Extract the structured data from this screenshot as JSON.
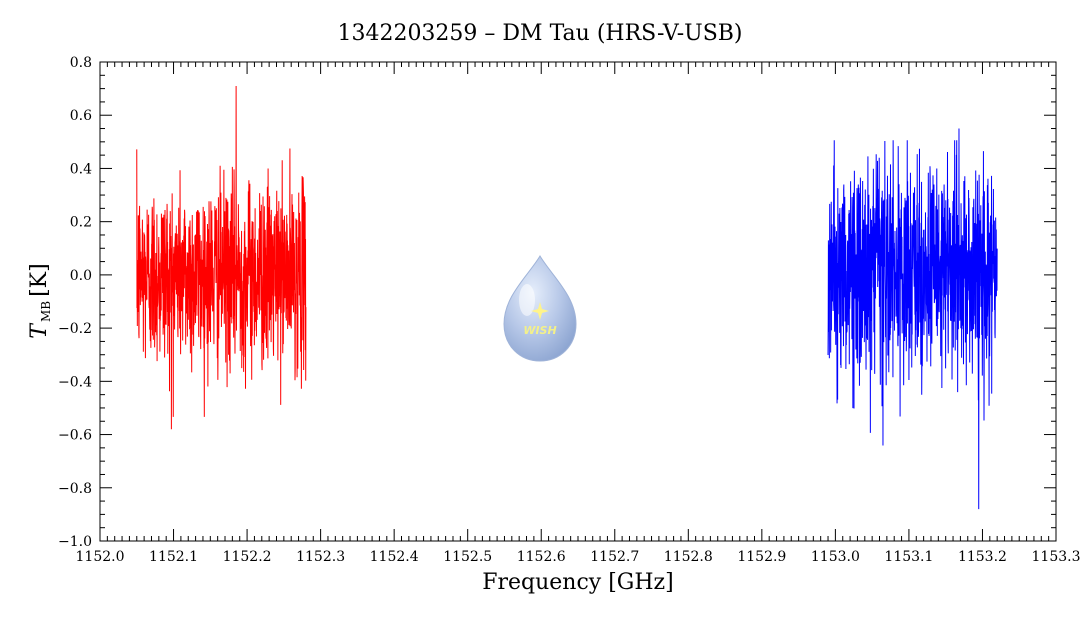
{
  "chart_data": {
    "type": "line",
    "title": "1342203259 – DM Tau (HRS-V-USB)",
    "xlabel": "Frequency [GHz]",
    "ylabel_symbol": "T",
    "ylabel_subscript": "MB",
    "ylabel_unit": "[K]",
    "xlim": [
      1152.0,
      1153.3
    ],
    "ylim": [
      -1.0,
      0.8
    ],
    "x_ticks": [
      "1152.0",
      "1152.1",
      "1152.2",
      "1152.3",
      "1152.4",
      "1152.5",
      "1152.6",
      "1152.7",
      "1152.8",
      "1152.9",
      "1153.0",
      "1153.1",
      "1153.2",
      "1153.3"
    ],
    "x_tick_values": [
      1152.0,
      1152.1,
      1152.2,
      1152.3,
      1152.4,
      1152.5,
      1152.6,
      1152.7,
      1152.8,
      1152.9,
      1153.0,
      1153.1,
      1153.2,
      1153.3
    ],
    "y_ticks": [
      "−1.0",
      "−0.8",
      "−0.6",
      "−0.4",
      "−0.2",
      "0.0",
      "0.2",
      "0.4",
      "0.6",
      "0.8"
    ],
    "y_tick_values": [
      -1.0,
      -0.8,
      -0.6,
      -0.4,
      -0.2,
      0.0,
      0.2,
      0.4,
      0.6,
      0.8
    ],
    "grid": false,
    "series": [
      {
        "color": "#ff0000",
        "x_range": [
          1152.05,
          1152.28
        ],
        "noise_rms": 0.17,
        "min": -0.58,
        "max": 0.71,
        "peak_x": 1152.185,
        "min_x": 1152.097
      },
      {
        "color": "#0000ff",
        "x_range": [
          1152.99,
          1153.22
        ],
        "noise_rms": 0.2,
        "min": -0.88,
        "max": 0.55,
        "peak_x": 1153.168,
        "min_x": 1153.195
      }
    ],
    "logo": {
      "text": "WISH",
      "color": "#a9bedf"
    }
  }
}
